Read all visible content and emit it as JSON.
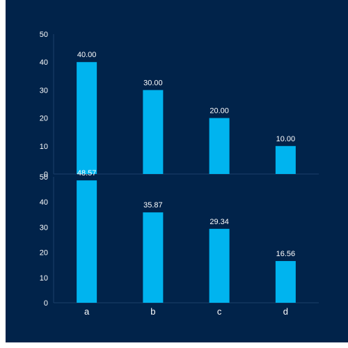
{
  "chart_data": [
    {
      "type": "bar",
      "categories": [
        "a",
        "b",
        "c",
        "d"
      ],
      "values": [
        40,
        30,
        20,
        10
      ],
      "data_labels": [
        "40.00",
        "30.00",
        "20.00",
        "10.00"
      ],
      "ylim": [
        0,
        50
      ],
      "yticks": [
        "0",
        "10",
        "20",
        "30",
        "40",
        "50"
      ],
      "title": "",
      "xlabel": "",
      "ylabel": "",
      "grid": false
    },
    {
      "type": "bar",
      "categories": [
        "a",
        "b",
        "c",
        "d"
      ],
      "values": [
        48.57,
        35.87,
        29.34,
        16.56
      ],
      "data_labels": [
        "48.57",
        "35.87",
        "29.34",
        "16.56"
      ],
      "ylim": [
        0,
        50
      ],
      "yticks": [
        "0",
        "10",
        "20",
        "30",
        "40",
        "50"
      ],
      "title": "",
      "xlabel": "",
      "ylabel": "",
      "grid": false
    }
  ],
  "colors": {
    "background": "#01234a",
    "bar": "#00b4ef",
    "axis": "#1b3f6b",
    "text": "#ffffff"
  }
}
